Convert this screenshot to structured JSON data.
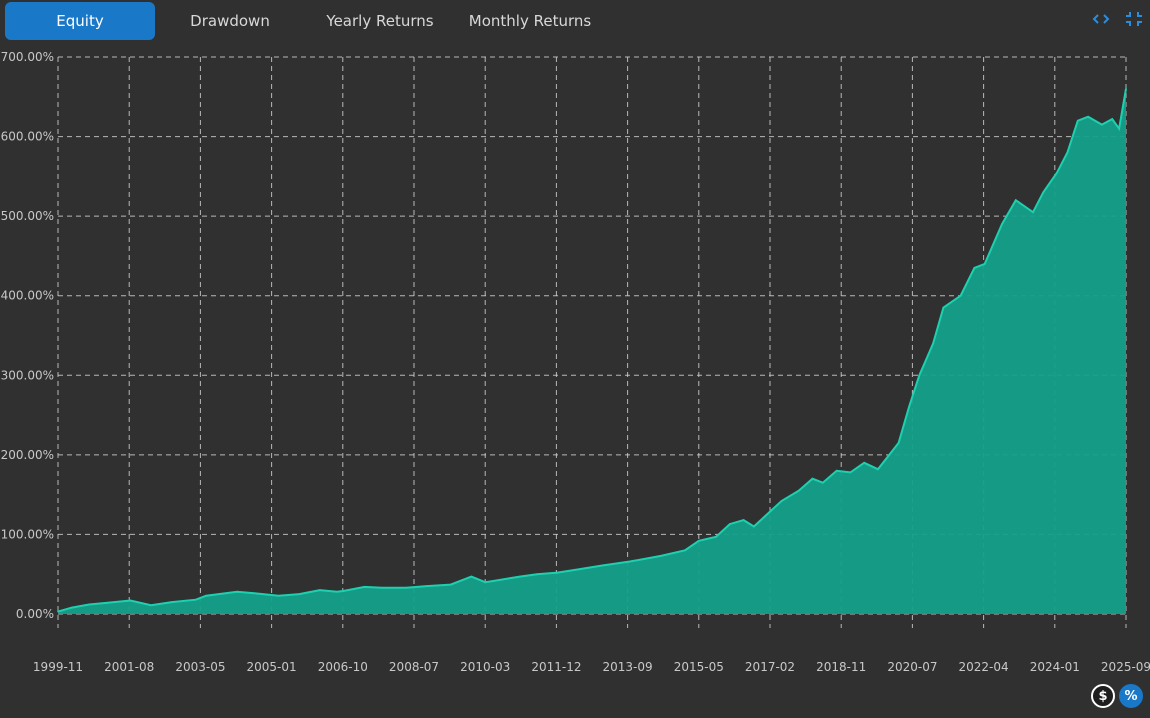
{
  "tabs": [
    {
      "label": "Equity",
      "active": true
    },
    {
      "label": "Drawdown",
      "active": false
    },
    {
      "label": "Yearly Returns",
      "active": false
    },
    {
      "label": "Monthly Returns",
      "active": false
    }
  ],
  "toolbar": {
    "icons": [
      "expand-horizontal-icon",
      "collapse-icon"
    ]
  },
  "bottom_buttons": {
    "dollar_label": "$",
    "percent_label": "%",
    "active": "percent"
  },
  "colors": {
    "background": "#303030",
    "accent": "#1a78c9",
    "series_fill": "#14a08a",
    "series_line": "#1ed0b0",
    "grid": "#d0d0d0",
    "tick_text": "#c8c8c8"
  },
  "chart_data": {
    "type": "area",
    "grid": true,
    "ylim": [
      0,
      700
    ],
    "yticks": [
      "0.00%",
      "100.00%",
      "200.00%",
      "300.00%",
      "400.00%",
      "500.00%",
      "600.00%",
      "700.00%"
    ],
    "xticks": [
      "1999-11",
      "2001-08",
      "2003-05",
      "2005-01",
      "2006-10",
      "2008-07",
      "2010-03",
      "2011-12",
      "2013-09",
      "2015-05",
      "2017-02",
      "2018-11",
      "2020-07",
      "2022-04",
      "2024-01",
      "2025-09"
    ],
    "series": [
      {
        "x": [
          "1999-11",
          "2000-03",
          "2000-08",
          "2001-01",
          "2001-08",
          "2002-02",
          "2002-08",
          "2003-03",
          "2003-06",
          "2004-03",
          "2004-08",
          "2005-03",
          "2005-09",
          "2006-03",
          "2006-08",
          "2006-10",
          "2007-04",
          "2007-09",
          "2008-04",
          "2008-10",
          "2009-05",
          "2009-11",
          "2010-03",
          "2010-06",
          "2011-01",
          "2011-06",
          "2011-12",
          "2012-06",
          "2013-01",
          "2013-09",
          "2014-06",
          "2015-01",
          "2015-05",
          "2015-10",
          "2016-02",
          "2016-06",
          "2016-09",
          "2017-02",
          "2017-05",
          "2017-10",
          "2018-02",
          "2018-05",
          "2018-09",
          "2019-01",
          "2019-05",
          "2019-09",
          "2020-03",
          "2020-06",
          "2020-09",
          "2021-01",
          "2021-04",
          "2021-09",
          "2022-01",
          "2022-04",
          "2022-09",
          "2023-01",
          "2023-06",
          "2023-09",
          "2024-01",
          "2024-04",
          "2024-07",
          "2024-10",
          "2025-02",
          "2025-05",
          "2025-07",
          "2025-09"
        ],
        "values": [
          3,
          8,
          12,
          14,
          17,
          11,
          15,
          18,
          23,
          28,
          26,
          23,
          25,
          30,
          28,
          29,
          34,
          33,
          33,
          35,
          37,
          47,
          40,
          42,
          47,
          50,
          52,
          56,
          61,
          66,
          73,
          80,
          92,
          97,
          113,
          118,
          110,
          130,
          142,
          155,
          170,
          165,
          180,
          178,
          190,
          182,
          215,
          260,
          300,
          340,
          385,
          400,
          435,
          440,
          490,
          520,
          505,
          530,
          555,
          580,
          620,
          625,
          615,
          622,
          610,
          660
        ]
      }
    ]
  }
}
